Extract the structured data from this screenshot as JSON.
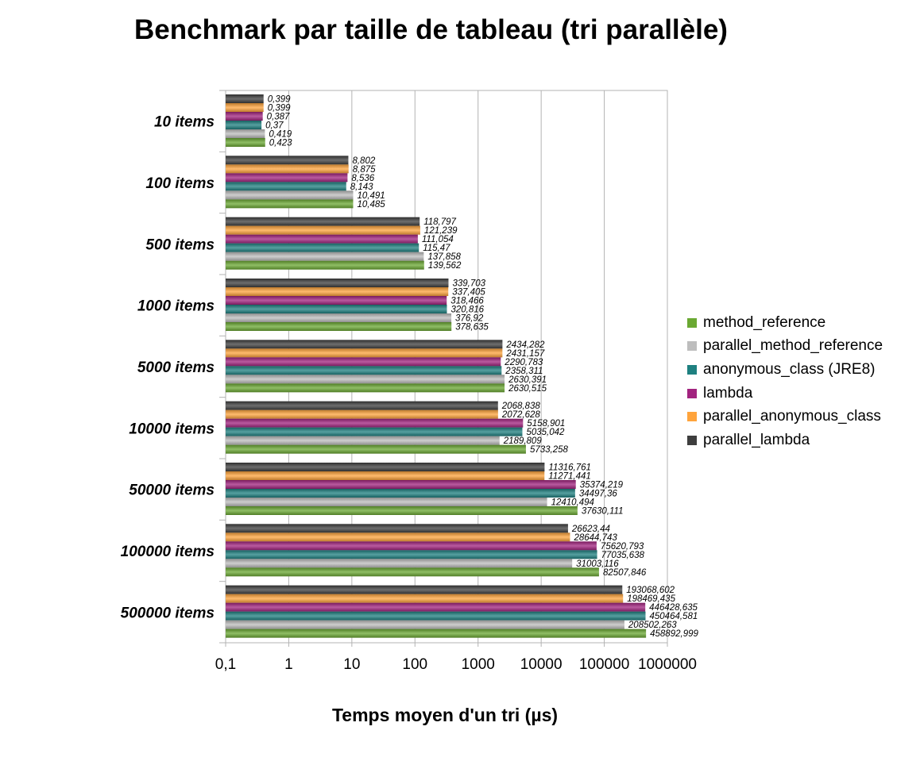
{
  "chart_data": {
    "type": "bar",
    "orientation": "horizontal",
    "title": "Benchmark par taille de tableau (tri parallèle)",
    "xlabel": "Temps moyen d'un tri  (µs)",
    "ylabel": "",
    "x_scale": "log",
    "xlim": [
      0.1,
      1000000
    ],
    "x_ticks": [
      "0,1",
      "1",
      "10",
      "100",
      "1000",
      "10000",
      "100000",
      "1000000"
    ],
    "grid": true,
    "legend_position": "right",
    "categories": [
      "10 items",
      "100 items",
      "500 items",
      "1000 items",
      "5000 items",
      "10000 items",
      "50000 items",
      "100000 items",
      "500000 items"
    ],
    "series": [
      {
        "name": "method_reference",
        "color": "#6aa832",
        "values": [
          0.423,
          10.485,
          139.562,
          378.635,
          2630.515,
          5733.258,
          37630.111,
          82507.846,
          458892.999
        ],
        "labels": [
          "0,423",
          "10,485",
          "139,562",
          "378,635",
          "2630,515",
          "5733,258",
          "37630,111",
          "82507,846",
          "458892,999"
        ]
      },
      {
        "name": "parallel_method_reference",
        "color": "#bdbdbd",
        "values": [
          0.419,
          10.491,
          137.858,
          376.92,
          2630.391,
          2189.809,
          12410.494,
          31003.116,
          208502.263
        ],
        "labels": [
          "0,419",
          "10,491",
          "137,858",
          "376,92",
          "2630,391",
          "2189,809",
          "12410,494",
          "31003,116",
          "208502,263"
        ]
      },
      {
        "name": "anonymous_class (JRE8)",
        "color": "#1e8080",
        "values": [
          0.37,
          8.143,
          115.47,
          320.816,
          2358.311,
          5035.042,
          34497.36,
          77035.638,
          450464.581
        ],
        "labels": [
          "0,37",
          "8,143",
          "115,47",
          "320,816",
          "2358,311",
          "5035,042",
          "34497,36",
          "77035,638",
          "450464,581"
        ]
      },
      {
        "name": "lambda",
        "color": "#a2237f",
        "values": [
          0.387,
          8.536,
          111.054,
          318.466,
          2290.783,
          5158.901,
          35374.219,
          75620.793,
          446428.635
        ],
        "labels": [
          "0,387",
          "8,536",
          "111,054",
          "318,466",
          "2290,783",
          "5158,901",
          "35374,219",
          "75620,793",
          "446428,635"
        ]
      },
      {
        "name": "parallel_anonymous_class",
        "color": "#ffa43c",
        "values": [
          0.399,
          8.875,
          121.239,
          337.405,
          2431.157,
          2072.628,
          11271.441,
          28644.743,
          198469.435
        ],
        "labels": [
          "0,399",
          "8,875",
          "121,239",
          "337,405",
          "2431,157",
          "2072,628",
          "11271,441",
          "28644,743",
          "198469,435"
        ]
      },
      {
        "name": "parallel_lambda",
        "color": "#3e3e3e",
        "values": [
          0.399,
          8.802,
          118.797,
          339.703,
          2434.282,
          2068.838,
          11316.761,
          26623.44,
          193068.602
        ],
        "labels": [
          "0,399",
          "8,802",
          "118,797",
          "339,703",
          "2434,282",
          "2068,838",
          "11316,761",
          "26623,44",
          "193068,602"
        ]
      }
    ]
  }
}
